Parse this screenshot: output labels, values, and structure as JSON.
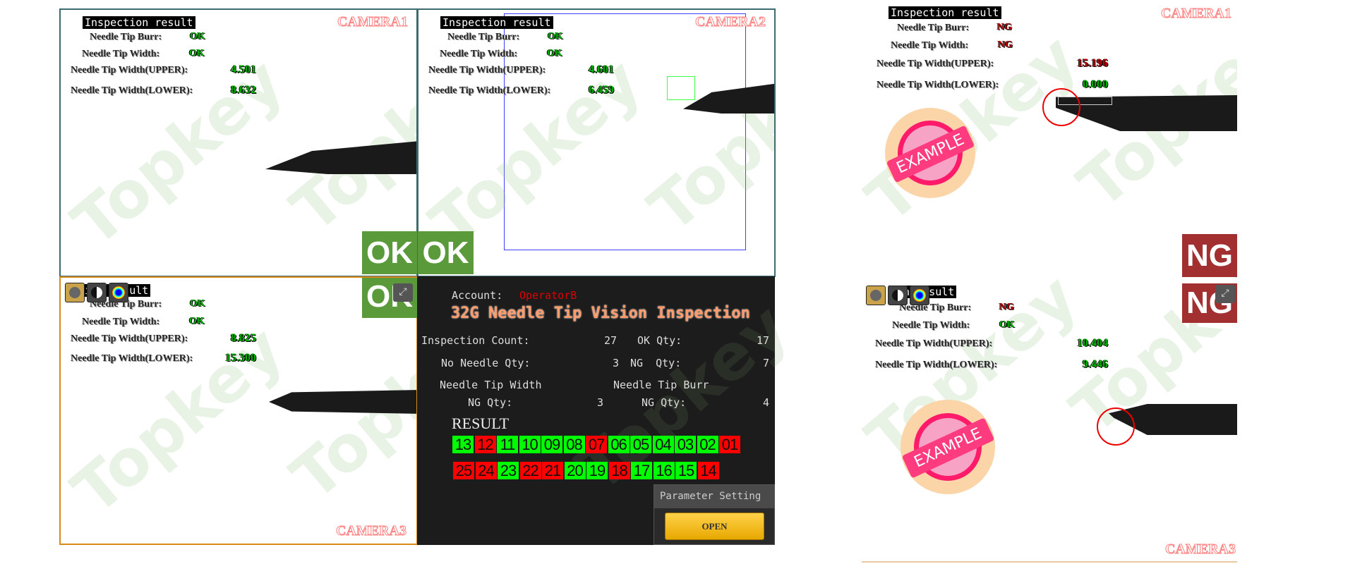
{
  "colors": {
    "ok": "#00b400",
    "ng": "#c00000",
    "result_ok": "#00ff00",
    "result_ng": "#ff0000",
    "title": "#ff9a6a"
  },
  "watermark": "Topkey",
  "stamp_text": "EXAMPLE",
  "left_cameras": [
    {
      "camera": "CAMERA1",
      "title": "Inspection result",
      "burr_label": "Needle Tip Burr:",
      "burr": "OK",
      "width_label": "Needle Tip Width:",
      "width": "OK",
      "upper_label": "Needle Tip Width(UPPER):",
      "upper": "4.501",
      "lower_label": "Needle Tip Width(LOWER):",
      "lower": "8.632"
    },
    {
      "camera": "CAMERA2",
      "title": "Inspection result",
      "burr_label": "Needle Tip Burr:",
      "burr": "OK",
      "width_label": "Needle Tip Width:",
      "width": "OK",
      "upper_label": "Needle Tip Width(UPPER):",
      "upper": "4.601",
      "lower_label": "Needle Tip Width(LOWER):",
      "lower": "6.459"
    },
    {
      "camera": "CAMERA3",
      "title": "ion result",
      "burr_label": "Needle Tip Burr:",
      "burr": "OK",
      "width_label": "Needle Tip Width:",
      "width": "OK",
      "upper_label": "Needle Tip Width(UPPER):",
      "upper": "8.825",
      "lower_label": "Needle Tip Width(LOWER):",
      "lower": "15.300"
    }
  ],
  "left_badges": [
    "OK",
    "OK",
    "OK"
  ],
  "right_cameras": [
    {
      "camera": "CAMERA1",
      "title": "Inspection result",
      "burr_label": "Needle Tip Burr:",
      "burr": "NG",
      "width_label": "Needle Tip Width:",
      "width": "NG",
      "upper_label": "Needle Tip Width(UPPER):",
      "upper": "15.196",
      "upper_status": "NG",
      "lower_label": "Needle Tip Width(LOWER):",
      "lower": "0.000",
      "lower_status": "OK"
    },
    {
      "camera": "CAMERA3",
      "title": "ion result",
      "burr_label": "Needle Tip Burr:",
      "burr": "NG",
      "width_label": "Needle Tip Width:",
      "width": "OK",
      "upper_label": "Needle Tip Width(UPPER):",
      "upper": "10.404",
      "upper_status": "OK",
      "lower_label": "Needle Tip Width(LOWER):",
      "lower": "9.446",
      "lower_status": "OK"
    }
  ],
  "right_badges": [
    "NG",
    "NG"
  ],
  "toolbar_icons": [
    "grayscale-icon",
    "contrast-icon",
    "color-map-icon"
  ],
  "expand_icon": "expand-icon",
  "stats": {
    "account_label": "Account:",
    "account": "OperatorB",
    "title": "32G Needle Tip Vision Inspection",
    "inspection_count_label": "Inspection Count:",
    "inspection_count": "27",
    "ok_qty_label": "OK Qty:",
    "ok_qty": "17",
    "no_needle_label": "No Needle Qty:",
    "no_needle": "3",
    "ng_qty_label": "NG  Qty:",
    "ng_qty": "7",
    "width_title": "Needle Tip Width",
    "width_ng_label": "NG Qty:",
    "width_ng": "3",
    "burr_title": "Needle Tip Burr",
    "burr_ng_label": "NG Qty:",
    "burr_ng": "4",
    "result_label": "RESULT",
    "results_row1": [
      {
        "n": "13",
        "s": "OK"
      },
      {
        "n": "12",
        "s": "NG"
      },
      {
        "n": "11",
        "s": "OK"
      },
      {
        "n": "10",
        "s": "OK"
      },
      {
        "n": "09",
        "s": "OK"
      },
      {
        "n": "08",
        "s": "OK"
      },
      {
        "n": "07",
        "s": "NG"
      },
      {
        "n": "06",
        "s": "OK"
      },
      {
        "n": "05",
        "s": "OK"
      },
      {
        "n": "04",
        "s": "OK"
      },
      {
        "n": "03",
        "s": "OK"
      },
      {
        "n": "02",
        "s": "OK"
      },
      {
        "n": "01",
        "s": "NG"
      }
    ],
    "results_row2": [
      {
        "n": "25",
        "s": "NG"
      },
      {
        "n": "24",
        "s": "NG"
      },
      {
        "n": "23",
        "s": "OK"
      },
      {
        "n": "22",
        "s": "NG"
      },
      {
        "n": "21",
        "s": "NG"
      },
      {
        "n": "20",
        "s": "OK"
      },
      {
        "n": "19",
        "s": "OK"
      },
      {
        "n": "18",
        "s": "NG"
      },
      {
        "n": "17",
        "s": "OK"
      },
      {
        "n": "16",
        "s": "OK"
      },
      {
        "n": "15",
        "s": "OK"
      },
      {
        "n": "14",
        "s": "NG"
      }
    ]
  },
  "parameter": {
    "title": "Parameter Setting",
    "open_label": "OPEN"
  }
}
